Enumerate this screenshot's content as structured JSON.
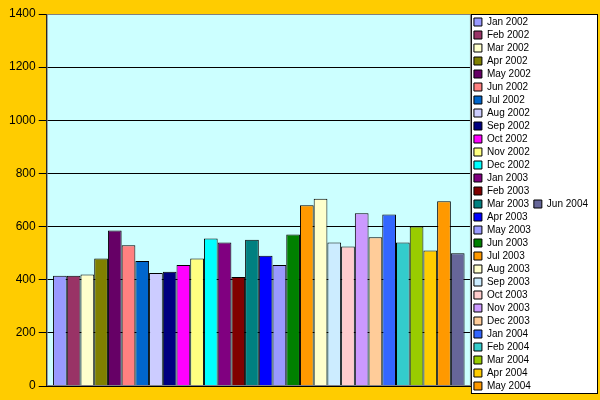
{
  "chart_data": {
    "type": "bar",
    "categories": [
      null
    ],
    "series": [
      {
        "name": "Jan 2002",
        "color": "#9999FF",
        "values": [
          415
        ]
      },
      {
        "name": "Feb 2002",
        "color": "#993366",
        "values": [
          415
        ]
      },
      {
        "name": "Mar 2002",
        "color": "#FFFFCC",
        "values": [
          420
        ]
      },
      {
        "name": "Apr 2002",
        "color": "#808000",
        "values": [
          480
        ]
      },
      {
        "name": "May 2002",
        "color": "#660066",
        "values": [
          585
        ]
      },
      {
        "name": "Jun 2002",
        "color": "#FF8080",
        "values": [
          530
        ]
      },
      {
        "name": "Jul 2002",
        "color": "#0066CC",
        "values": [
          470
        ]
      },
      {
        "name": "Aug 2002",
        "color": "#CCCCFF",
        "values": [
          425
        ]
      },
      {
        "name": "Sep 2002",
        "color": "#000080",
        "values": [
          430
        ]
      },
      {
        "name": "Oct 2002",
        "color": "#FF00FF",
        "values": [
          455
        ]
      },
      {
        "name": "Nov 2002",
        "color": "#FFFF80",
        "values": [
          480
        ]
      },
      {
        "name": "Dec 2002",
        "color": "#00FFFF",
        "values": [
          555
        ]
      },
      {
        "name": "Jan 2003",
        "color": "#800080",
        "values": [
          540
        ]
      },
      {
        "name": "Feb 2003",
        "color": "#800000",
        "values": [
          410
        ]
      },
      {
        "name": "Mar 2003",
        "color": "#008080",
        "values": [
          550
        ]
      },
      {
        "name": "Apr 2003",
        "color": "#0000FF",
        "values": [
          490
        ]
      },
      {
        "name": "May 2003",
        "color": "#9999FF",
        "values": [
          455
        ]
      },
      {
        "name": "Jun 2003",
        "color": "#008000",
        "values": [
          570
        ]
      },
      {
        "name": "Jul 2003",
        "color": "#FF9900",
        "values": [
          680
        ]
      },
      {
        "name": "Aug 2003",
        "color": "#FFFFCC",
        "values": [
          705
        ]
      },
      {
        "name": "Sep 2003",
        "color": "#CCECFF",
        "values": [
          540
        ]
      },
      {
        "name": "Oct 2003",
        "color": "#FFCCCC",
        "values": [
          525
        ]
      },
      {
        "name": "Nov 2003",
        "color": "#CC99FF",
        "values": [
          650
        ]
      },
      {
        "name": "Dec 2003",
        "color": "#FFCC99",
        "values": [
          560
        ]
      },
      {
        "name": "Jan 2004",
        "color": "#3366FF",
        "values": [
          645
        ]
      },
      {
        "name": "Feb 2004",
        "color": "#33CCCC",
        "values": [
          540
        ]
      },
      {
        "name": "Mar 2004",
        "color": "#99CC00",
        "values": [
          600
        ]
      },
      {
        "name": "Apr 2004",
        "color": "#FFCC00",
        "values": [
          510
        ]
      },
      {
        "name": "May 2004",
        "color": "#FF9900",
        "values": [
          695
        ]
      },
      {
        "name": "Jun 2004",
        "color": "#666699",
        "values": [
          500
        ]
      }
    ],
    "ylim": [
      0,
      1400
    ],
    "yticks": [
      0,
      200,
      400,
      600,
      800,
      1000,
      1200,
      1400
    ],
    "grid": true,
    "legend": "right",
    "tick_labels": "y"
  }
}
